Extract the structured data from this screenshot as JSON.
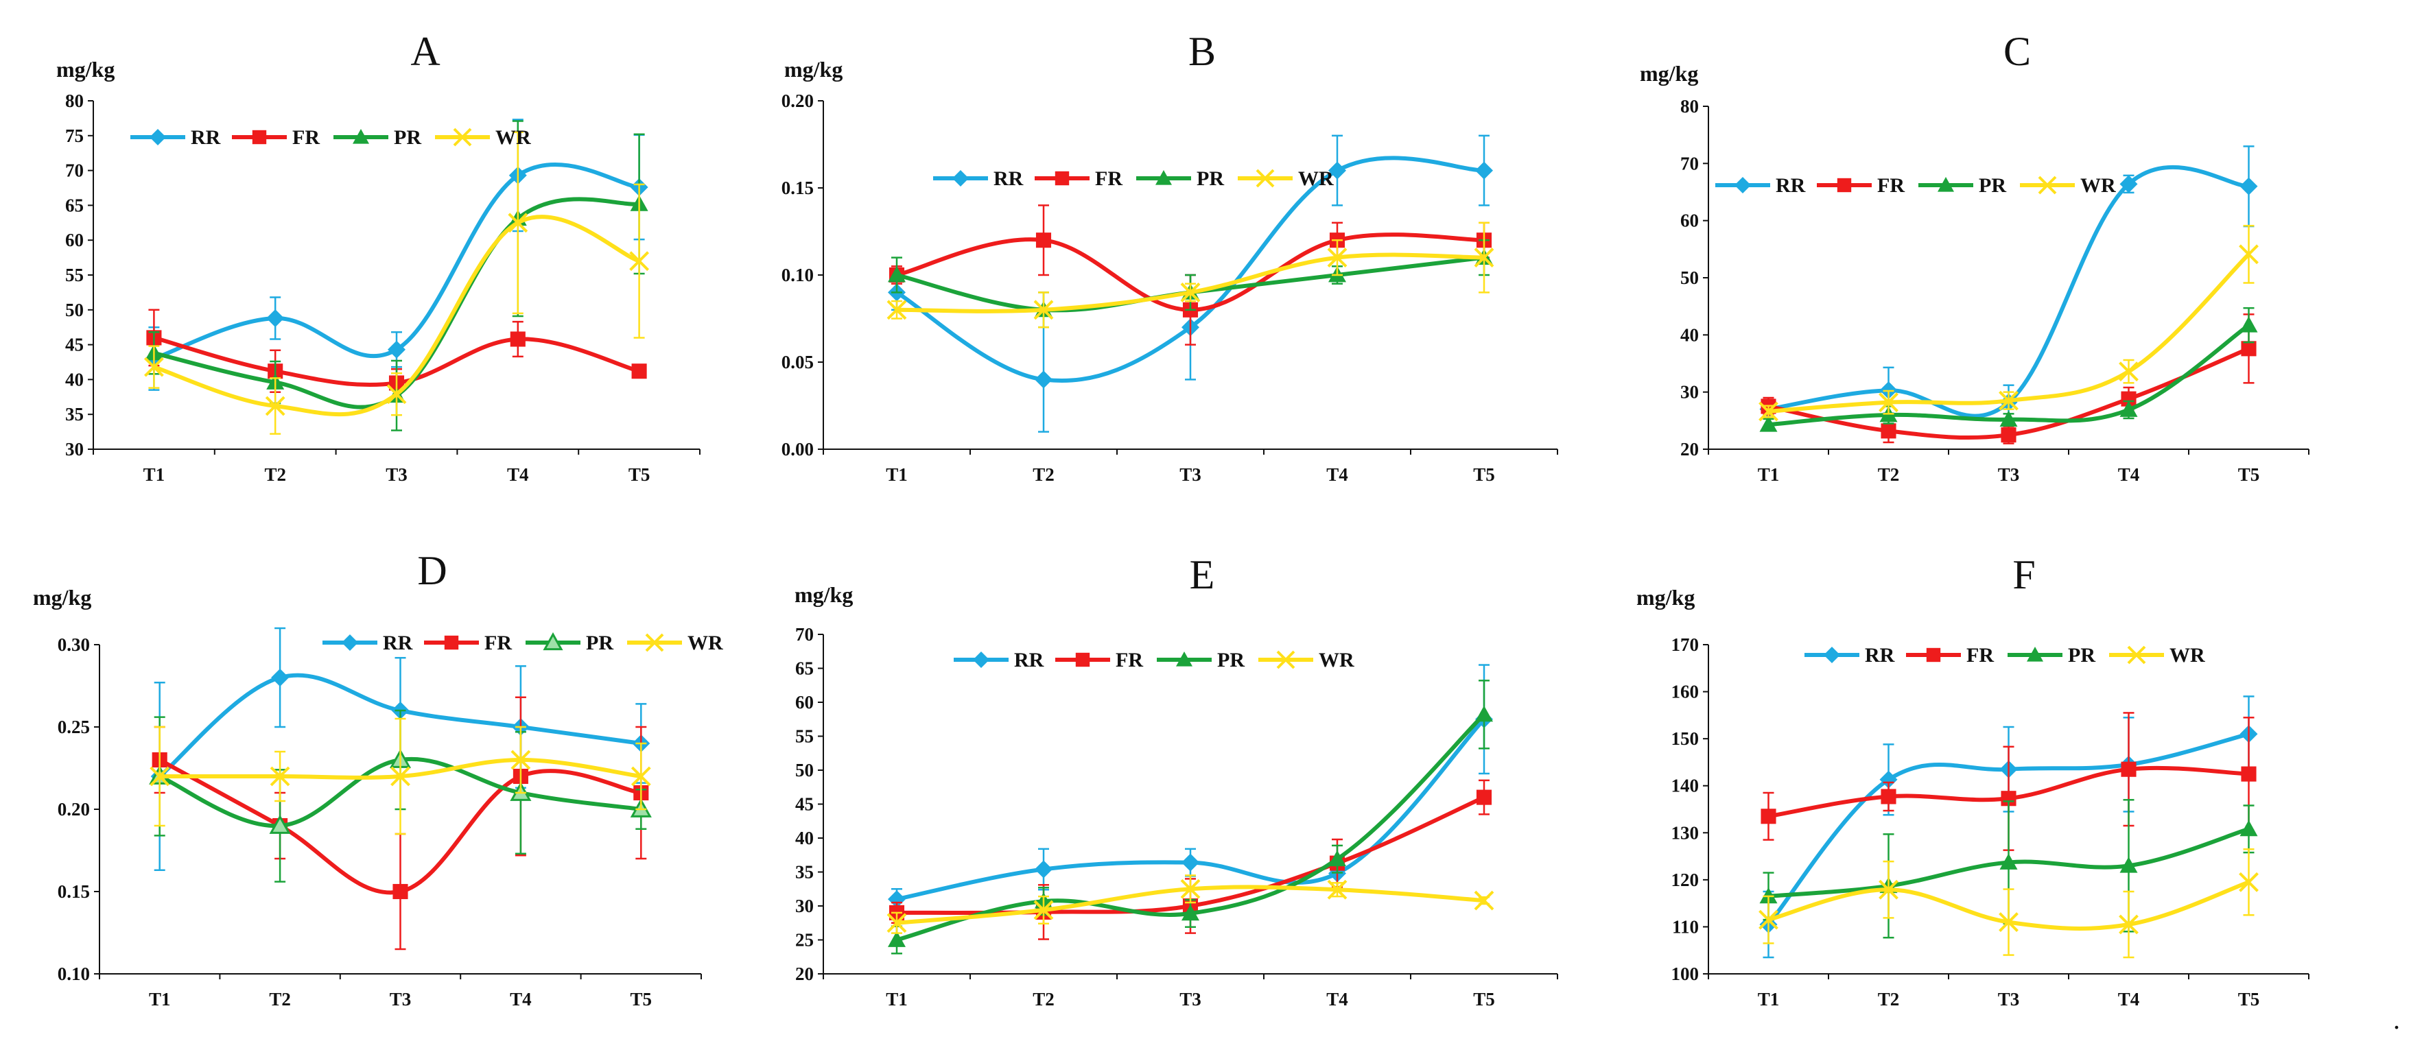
{
  "figure": {
    "trailing_mark": "."
  },
  "colors": {
    "RR": "#1EAAE1",
    "FR": "#EE1C1C",
    "PR": "#1BA33A",
    "WR": "#FFE01A"
  },
  "chart_data": [
    {
      "id": "A",
      "type": "line",
      "title": "A",
      "ylabel": "mg/kg",
      "categories": [
        "T1",
        "T2",
        "T3",
        "T4",
        "T5"
      ],
      "ylim": [
        30,
        80
      ],
      "yticks": [
        30,
        35,
        40,
        45,
        50,
        55,
        60,
        65,
        70,
        75,
        80
      ],
      "ytick_labels": [
        "30",
        "35",
        "40",
        "45",
        "50",
        "55",
        "60",
        "65",
        "70",
        "75",
        "80"
      ],
      "legend_position": "top-left",
      "series": [
        {
          "name": "RR",
          "marker": "diamond",
          "values": [
            43,
            48.8,
            44.3,
            69.3,
            67.6
          ],
          "errors": [
            4.5,
            3,
            2.5,
            8,
            7.5
          ]
        },
        {
          "name": "FR",
          "marker": "square",
          "values": [
            46,
            41.2,
            39.5,
            45.8,
            41.2
          ],
          "errors": [
            4,
            3,
            2,
            2.5,
            0.5
          ]
        },
        {
          "name": "PR",
          "marker": "triangle",
          "values": [
            43.8,
            39.6,
            37.7,
            63.1,
            65.2
          ],
          "errors": [
            3,
            3,
            5,
            14,
            10
          ]
        },
        {
          "name": "WR",
          "marker": "x",
          "values": [
            41.8,
            36.2,
            37.9,
            62.5,
            57
          ],
          "errors": [
            3,
            4,
            3,
            13,
            11
          ]
        }
      ]
    },
    {
      "id": "B",
      "type": "line",
      "title": "B",
      "ylabel": "mg/kg",
      "categories": [
        "T1",
        "T2",
        "T3",
        "T4",
        "T5"
      ],
      "ylim": [
        0,
        0.2
      ],
      "yticks": [
        0,
        0.05,
        0.1,
        0.15,
        0.2
      ],
      "ytick_labels": [
        "0.00",
        "0.05",
        "0.10",
        "0.15",
        "0.20"
      ],
      "legend_position": "top-left",
      "series": [
        {
          "name": "RR",
          "marker": "diamond",
          "values": [
            0.09,
            0.04,
            0.07,
            0.16,
            0.16
          ],
          "errors": [
            0.01,
            0.03,
            0.03,
            0.02,
            0.02
          ]
        },
        {
          "name": "FR",
          "marker": "square",
          "values": [
            0.1,
            0.12,
            0.08,
            0.12,
            0.12
          ],
          "errors": [
            0.005,
            0.02,
            0.02,
            0.01,
            0.01
          ]
        },
        {
          "name": "PR",
          "marker": "triangle",
          "values": [
            0.1,
            0.08,
            0.09,
            0.1,
            0.11
          ],
          "errors": [
            0.01,
            0.01,
            0.01,
            0.005,
            0.01
          ]
        },
        {
          "name": "WR",
          "marker": "x",
          "values": [
            0.08,
            0.08,
            0.09,
            0.11,
            0.11
          ],
          "errors": [
            0.005,
            0.01,
            0.005,
            0.01,
            0.02
          ]
        }
      ]
    },
    {
      "id": "C",
      "type": "line",
      "title": "C",
      "ylabel": "mg/kg",
      "categories": [
        "T1",
        "T2",
        "T3",
        "T4",
        "T5"
      ],
      "ylim": [
        20,
        80
      ],
      "yticks": [
        20,
        30,
        40,
        50,
        60,
        70,
        80
      ],
      "ytick_labels": [
        "20",
        "30",
        "40",
        "50",
        "60",
        "70",
        "80"
      ],
      "legend_position": "top-left",
      "series": [
        {
          "name": "RR",
          "marker": "diamond",
          "values": [
            27,
            30.3,
            28.2,
            66.4,
            66
          ],
          "errors": [
            1,
            4,
            3,
            1.5,
            7
          ]
        },
        {
          "name": "FR",
          "marker": "square",
          "values": [
            27.5,
            23.2,
            22.5,
            28.8,
            37.6
          ],
          "errors": [
            1.5,
            2,
            1.5,
            2,
            6
          ]
        },
        {
          "name": "PR",
          "marker": "triangle",
          "values": [
            24.3,
            26,
            25.2,
            26.9,
            41.7
          ],
          "errors": [
            1,
            1.5,
            1,
            1.5,
            3
          ]
        },
        {
          "name": "WR",
          "marker": "x",
          "values": [
            26.6,
            28.2,
            28.5,
            33.6,
            54.1
          ],
          "errors": [
            1,
            2,
            1.5,
            2,
            5
          ]
        }
      ]
    },
    {
      "id": "D",
      "type": "line",
      "title": "D",
      "ylabel": "mg/kg",
      "categories": [
        "T1",
        "T2",
        "T3",
        "T4",
        "T5"
      ],
      "ylim": [
        0.1,
        0.3
      ],
      "yticks": [
        0.1,
        0.15,
        0.2,
        0.25,
        0.3
      ],
      "ytick_labels": [
        "0.10",
        "0.15",
        "0.20",
        "0.25",
        "0.30"
      ],
      "legend_position": "top-right",
      "series": [
        {
          "name": "RR",
          "marker": "diamond",
          "values": [
            0.22,
            0.28,
            0.26,
            0.25,
            0.24
          ],
          "errors": [
            0.057,
            0.03,
            0.032,
            0.037,
            0.024
          ]
        },
        {
          "name": "FR",
          "marker": "square",
          "values": [
            0.23,
            0.19,
            0.15,
            0.22,
            0.21
          ],
          "errors": [
            0.02,
            0.02,
            0.035,
            0.048,
            0.04
          ]
        },
        {
          "name": "PR",
          "marker": "triangle-open",
          "values": [
            0.22,
            0.19,
            0.23,
            0.21,
            0.2
          ],
          "errors": [
            0.036,
            0.034,
            0.03,
            0.037,
            0.012
          ]
        },
        {
          "name": "WR",
          "marker": "x",
          "values": [
            0.22,
            0.22,
            0.22,
            0.23,
            0.22
          ],
          "errors": [
            0.03,
            0.015,
            0.035,
            0.02,
            0.02
          ]
        }
      ]
    },
    {
      "id": "E",
      "type": "line",
      "title": "E",
      "ylabel": "mg/kg",
      "categories": [
        "T1",
        "T2",
        "T3",
        "T4",
        "T5"
      ],
      "ylim": [
        20,
        70
      ],
      "yticks": [
        20,
        25,
        30,
        35,
        40,
        45,
        50,
        55,
        60,
        65,
        70
      ],
      "ytick_labels": [
        "20",
        "25",
        "30",
        "35",
        "40",
        "45",
        "50",
        "55",
        "60",
        "65",
        "70"
      ],
      "legend_position": "top-center",
      "series": [
        {
          "name": "RR",
          "marker": "diamond",
          "values": [
            31,
            35.4,
            36.4,
            34.8,
            57.5
          ],
          "errors": [
            1.5,
            3,
            2,
            2,
            8
          ]
        },
        {
          "name": "FR",
          "marker": "square",
          "values": [
            29,
            29.1,
            30,
            36.3,
            46
          ],
          "errors": [
            1.5,
            4,
            4,
            3.5,
            2.5
          ]
        },
        {
          "name": "PR",
          "marker": "triangle",
          "values": [
            25,
            30.7,
            28.9,
            36.9,
            58.2
          ],
          "errors": [
            2,
            2,
            2,
            2,
            5
          ]
        },
        {
          "name": "WR",
          "marker": "x",
          "values": [
            27.5,
            29.4,
            32.5,
            32.4,
            30.8
          ],
          "errors": [
            1.5,
            2,
            2,
            1,
            0.5
          ]
        }
      ]
    },
    {
      "id": "F",
      "type": "line",
      "title": "F",
      "ylabel": "mg/kg",
      "categories": [
        "T1",
        "T2",
        "T3",
        "T4",
        "T5"
      ],
      "ylim": [
        100,
        170
      ],
      "yticks": [
        100,
        110,
        120,
        130,
        140,
        150,
        160,
        170
      ],
      "ytick_labels": [
        "100",
        "110",
        "120",
        "130",
        "140",
        "150",
        "160",
        "170"
      ],
      "legend_position": "top-left",
      "series": [
        {
          "name": "RR",
          "marker": "diamond",
          "values": [
            110.5,
            141.3,
            143.5,
            144.5,
            151
          ],
          "errors": [
            7,
            7.5,
            9,
            10,
            8
          ]
        },
        {
          "name": "FR",
          "marker": "square",
          "values": [
            133.5,
            137.7,
            137.3,
            143.5,
            142.5
          ],
          "errors": [
            5,
            3,
            11,
            12,
            12
          ]
        },
        {
          "name": "PR",
          "marker": "triangle",
          "values": [
            116.5,
            118.7,
            123.7,
            123,
            130.8
          ],
          "errors": [
            5,
            11,
            13,
            14,
            5
          ]
        },
        {
          "name": "WR",
          "marker": "x",
          "values": [
            111.5,
            117.9,
            111,
            110.5,
            119.5
          ],
          "errors": [
            5,
            6,
            7,
            7,
            7
          ]
        }
      ]
    }
  ]
}
